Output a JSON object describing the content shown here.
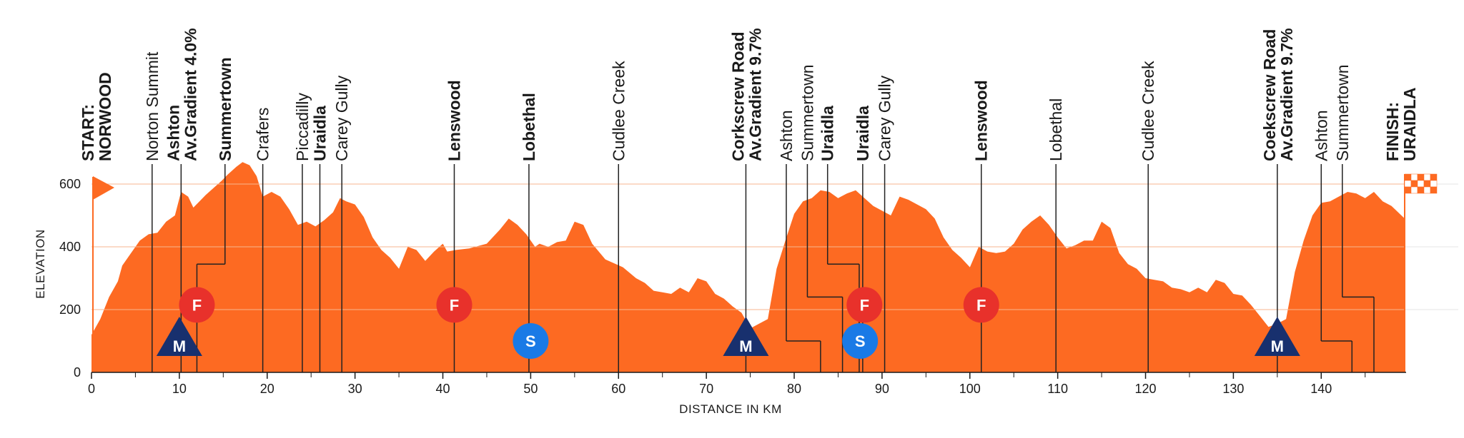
{
  "colors": {
    "fill": "#fd6a22",
    "line": "#222222",
    "grid": "#f7b58f",
    "flag": "#fd6a22",
    "feed_zone": "#e8312b",
    "sprint": "#1a7ae6",
    "kom": "#18306e"
  },
  "chart_data": {
    "type": "area",
    "title": "",
    "xlabel": "DISTANCE IN KM",
    "ylabel": "ELEVATION",
    "xlim": [
      0,
      149.5
    ],
    "ylim": [
      0,
      640
    ],
    "x_ticks": [
      "0",
      "10",
      "20",
      "30",
      "40",
      "50",
      "60",
      "70",
      "80",
      "90",
      "100",
      "110",
      "120",
      "130",
      "140"
    ],
    "y_ticks": [
      "0",
      "200",
      "400",
      "600"
    ],
    "grid": "horizontal",
    "elevation_profile": [
      [
        0,
        120
      ],
      [
        1,
        170
      ],
      [
        2,
        240
      ],
      [
        3,
        290
      ],
      [
        3.5,
        340
      ],
      [
        4.5,
        380
      ],
      [
        5.5,
        420
      ],
      [
        6.5,
        440
      ],
      [
        7.5,
        445
      ],
      [
        8.5,
        480
      ],
      [
        9.5,
        500
      ],
      [
        10.2,
        575
      ],
      [
        11,
        560
      ],
      [
        11.6,
        525
      ],
      [
        12.3,
        545
      ],
      [
        13,
        565
      ],
      [
        14,
        590
      ],
      [
        14.8,
        610
      ],
      [
        15.5,
        630
      ],
      [
        16.5,
        655
      ],
      [
        17.2,
        670
      ],
      [
        18,
        660
      ],
      [
        18.8,
        625
      ],
      [
        19.5,
        560
      ],
      [
        20.5,
        575
      ],
      [
        21.5,
        560
      ],
      [
        22.5,
        520
      ],
      [
        23.5,
        470
      ],
      [
        24.5,
        480
      ],
      [
        25.5,
        465
      ],
      [
        26.5,
        485
      ],
      [
        27.5,
        510
      ],
      [
        28.3,
        555
      ],
      [
        29,
        545
      ],
      [
        30,
        535
      ],
      [
        31,
        495
      ],
      [
        32,
        430
      ],
      [
        33,
        390
      ],
      [
        34,
        365
      ],
      [
        35,
        330
      ],
      [
        36,
        400
      ],
      [
        37,
        390
      ],
      [
        38,
        355
      ],
      [
        39,
        385
      ],
      [
        40,
        410
      ],
      [
        40.5,
        385
      ],
      [
        41.5,
        390
      ],
      [
        43,
        395
      ],
      [
        45,
        410
      ],
      [
        46.5,
        455
      ],
      [
        47.5,
        490
      ],
      [
        48.5,
        470
      ],
      [
        49.5,
        440
      ],
      [
        50.5,
        400
      ],
      [
        51,
        410
      ],
      [
        52,
        400
      ],
      [
        53,
        415
      ],
      [
        54,
        420
      ],
      [
        55,
        480
      ],
      [
        56,
        470
      ],
      [
        57,
        410
      ],
      [
        58.5,
        360
      ],
      [
        60.5,
        335
      ],
      [
        62,
        300
      ],
      [
        63,
        285
      ],
      [
        64,
        260
      ],
      [
        65,
        255
      ],
      [
        66,
        250
      ],
      [
        67,
        270
      ],
      [
        68,
        255
      ],
      [
        69,
        300
      ],
      [
        70,
        290
      ],
      [
        71,
        250
      ],
      [
        72,
        235
      ],
      [
        73,
        210
      ],
      [
        74,
        190
      ],
      [
        75,
        140
      ],
      [
        76,
        155
      ],
      [
        77,
        170
      ],
      [
        78,
        330
      ],
      [
        79,
        420
      ],
      [
        80,
        505
      ],
      [
        81,
        545
      ],
      [
        82,
        555
      ],
      [
        83,
        580
      ],
      [
        84,
        575
      ],
      [
        85,
        555
      ],
      [
        86,
        570
      ],
      [
        87,
        580
      ],
      [
        88,
        555
      ],
      [
        89,
        530
      ],
      [
        90,
        515
      ],
      [
        91,
        500
      ],
      [
        92,
        560
      ],
      [
        93,
        550
      ],
      [
        94,
        535
      ],
      [
        95,
        520
      ],
      [
        96,
        490
      ],
      [
        97,
        430
      ],
      [
        98,
        390
      ],
      [
        99,
        365
      ],
      [
        100,
        335
      ],
      [
        101,
        400
      ],
      [
        102,
        385
      ],
      [
        103,
        380
      ],
      [
        104,
        385
      ],
      [
        105,
        410
      ],
      [
        106,
        455
      ],
      [
        107,
        480
      ],
      [
        108,
        500
      ],
      [
        109,
        470
      ],
      [
        110,
        430
      ],
      [
        111,
        395
      ],
      [
        112,
        405
      ],
      [
        113,
        420
      ],
      [
        114,
        420
      ],
      [
        115,
        480
      ],
      [
        116,
        460
      ],
      [
        117,
        380
      ],
      [
        118,
        345
      ],
      [
        119,
        330
      ],
      [
        120,
        300
      ],
      [
        121,
        295
      ],
      [
        122,
        290
      ],
      [
        123,
        270
      ],
      [
        124,
        265
      ],
      [
        125,
        255
      ],
      [
        126,
        270
      ],
      [
        127,
        255
      ],
      [
        128,
        295
      ],
      [
        129,
        285
      ],
      [
        130,
        250
      ],
      [
        131,
        245
      ],
      [
        132,
        215
      ],
      [
        133,
        180
      ],
      [
        134,
        145
      ],
      [
        135,
        155
      ],
      [
        136,
        170
      ],
      [
        137,
        320
      ],
      [
        138,
        420
      ],
      [
        139,
        500
      ],
      [
        140,
        540
      ],
      [
        141,
        545
      ],
      [
        142,
        560
      ],
      [
        143,
        575
      ],
      [
        144,
        570
      ],
      [
        145,
        555
      ],
      [
        146,
        575
      ],
      [
        147,
        545
      ],
      [
        148,
        530
      ],
      [
        149.5,
        490
      ]
    ]
  },
  "locations": [
    {
      "label": "START:",
      "label2": "NORWOOD",
      "km": 0.5,
      "bold": true,
      "line": false
    },
    {
      "label": "Norton Summit",
      "km": 6.9,
      "bold": false,
      "line": true
    },
    {
      "label": "Ashton",
      "label2": "Av.Gradient 4.0%",
      "km": 10.2,
      "bold": true,
      "line": true
    },
    {
      "label": "Summertown",
      "km": 15.2,
      "bold": true,
      "line": true,
      "jog_to_km": 12,
      "jog_elev": 345
    },
    {
      "label": "Crafers",
      "km": 19.5,
      "bold": false,
      "line": true
    },
    {
      "label": "Piccadilly",
      "km": 24,
      "bold": false,
      "line": true
    },
    {
      "label": "Uraidla",
      "km": 26,
      "bold": true,
      "line": true
    },
    {
      "label": "Carey Gully",
      "km": 28.5,
      "bold": false,
      "line": true
    },
    {
      "label": "Lenswood",
      "km": 41.3,
      "bold": true,
      "line": true
    },
    {
      "label": "Lobethal",
      "km": 49.8,
      "bold": true,
      "line": true
    },
    {
      "label": "Cudlee Creek",
      "km": 60,
      "bold": false,
      "line": true
    },
    {
      "label": "Corkscrew Road",
      "label2": "Av.Gradient 9.7%",
      "km": 74.5,
      "bold": true,
      "line": true
    },
    {
      "label": "Ashton",
      "km": 79.1,
      "bold": false,
      "line": true,
      "jog_to_km": 83,
      "jog_elev": 100
    },
    {
      "label": "Summertown",
      "km": 81.5,
      "bold": false,
      "line": true,
      "jog_to_km": 85.5,
      "jog_elev": 240
    },
    {
      "label": "Uraidla",
      "km": 83.8,
      "bold": true,
      "line": true,
      "jog_to_km": 87.4,
      "jog_elev": 345
    },
    {
      "label": "Uraidla",
      "km": 87.8,
      "bold": true,
      "line": true
    },
    {
      "label": "Carey Gully",
      "km": 90.3,
      "bold": false,
      "line": true
    },
    {
      "label": "Lenswood",
      "km": 101.3,
      "bold": true,
      "line": true
    },
    {
      "label": "Lobethal",
      "km": 109.8,
      "bold": false,
      "line": true
    },
    {
      "label": "Cudlee Creek",
      "km": 120.3,
      "bold": false,
      "line": true
    },
    {
      "label": "Coekscrew Road",
      "label2": "Av.Gradient 9.7%",
      "km": 135,
      "bold": true,
      "line": true
    },
    {
      "label": "Ashton",
      "km": 140,
      "bold": false,
      "line": true,
      "jog_to_km": 143.5,
      "jog_elev": 100
    },
    {
      "label": "Summertown",
      "km": 142.4,
      "bold": false,
      "line": true,
      "jog_to_km": 146,
      "jog_elev": 240
    },
    {
      "label": "FINISH:",
      "label2": "URAIDLA",
      "km": 149,
      "bold": true,
      "line": false
    }
  ],
  "markers": [
    {
      "type": "kom",
      "letter": "M",
      "km": 10,
      "elev": 100
    },
    {
      "type": "feed_zone",
      "letter": "F",
      "km": 12,
      "elev": 215
    },
    {
      "type": "feed_zone",
      "letter": "F",
      "km": 41.3,
      "elev": 215
    },
    {
      "type": "sprint",
      "letter": "S",
      "km": 50,
      "elev": 100
    },
    {
      "type": "kom",
      "letter": "M",
      "km": 74.5,
      "elev": 100
    },
    {
      "type": "feed_zone",
      "letter": "F",
      "km": 88,
      "elev": 215
    },
    {
      "type": "sprint",
      "letter": "S",
      "km": 87.5,
      "elev": 100
    },
    {
      "type": "feed_zone",
      "letter": "F",
      "km": 101.3,
      "elev": 215
    },
    {
      "type": "kom",
      "letter": "M",
      "km": 135,
      "elev": 100
    }
  ]
}
